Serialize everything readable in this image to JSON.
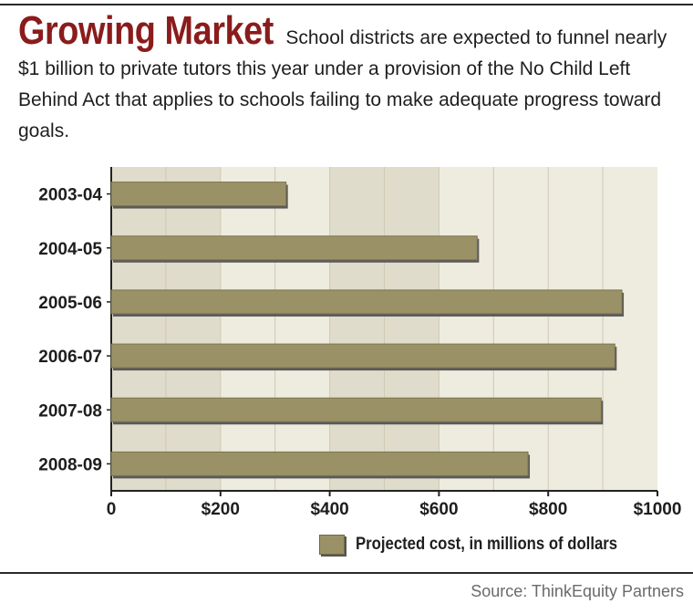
{
  "header": {
    "title": "Growing Market",
    "subtitle": "School districts are expected to funnel nearly $1 billion to private tutors this year under a provision of the No Child Left Behind Act that applies to schools failing to make adequate progress toward goals."
  },
  "source": "Source: ThinkEquity Partners",
  "colors": {
    "title": "#8a1c1c",
    "bar": "#9a9266",
    "band_dark": "#e0dccb",
    "band_light": "#eeebdf"
  },
  "chart_data": {
    "type": "bar",
    "orientation": "horizontal",
    "categories": [
      "2003-04",
      "2004-05",
      "2005-06",
      "2006-07",
      "2007-08",
      "2008-09"
    ],
    "series": [
      {
        "name": "Projected cost, in millions of dollars",
        "values": [
          320,
          670,
          935,
          922,
          897,
          763
        ]
      }
    ],
    "xlim": [
      0,
      1000
    ],
    "xticks": [
      0,
      200,
      400,
      600,
      800,
      1000
    ],
    "xtick_labels": [
      "0",
      "$200",
      "$400",
      "$600",
      "$800",
      "$1000"
    ],
    "grid": true,
    "legend_position": "bottom-right"
  }
}
